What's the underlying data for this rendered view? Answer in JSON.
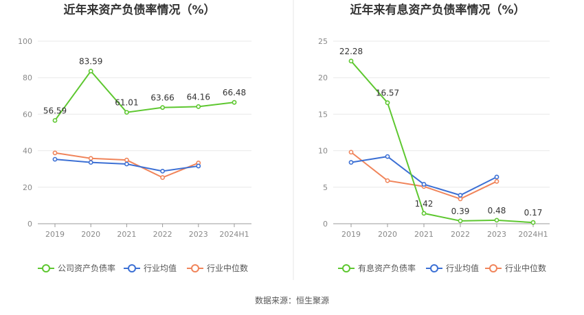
{
  "source_label": "数据来源：恒生聚源",
  "chart_data": [
    {
      "type": "line",
      "title": "近年来资产负债率情况（%）",
      "categories": [
        "2019",
        "2020",
        "2021",
        "2022",
        "2023",
        "2024H1"
      ],
      "ylim": [
        0,
        100
      ],
      "yticks": [
        0,
        20,
        40,
        60,
        80,
        100
      ],
      "grid": true,
      "legend_position": "bottom",
      "series": [
        {
          "name": "公司资产负债率",
          "color": "#5dc72f",
          "values": [
            56.59,
            83.59,
            61.01,
            63.66,
            64.16,
            66.48
          ],
          "labels": [
            "56.59",
            "83.59",
            "61.01",
            "63.66",
            "64.16",
            "66.48"
          ]
        },
        {
          "name": "行业均值",
          "color": "#3b6fd4",
          "values": [
            35.3,
            33.6,
            32.7,
            28.8,
            31.6,
            null
          ],
          "labels": []
        },
        {
          "name": "行业中位数",
          "color": "#f0845a",
          "values": [
            38.8,
            35.8,
            34.9,
            25.3,
            33.3,
            null
          ],
          "labels": []
        }
      ]
    },
    {
      "type": "line",
      "title": "近年来有息资产负债率情况（%）",
      "categories": [
        "2019",
        "2020",
        "2021",
        "2022",
        "2023",
        "2024H1"
      ],
      "ylim": [
        0,
        25
      ],
      "yticks": [
        0,
        5,
        10,
        15,
        20,
        25
      ],
      "grid": true,
      "legend_position": "bottom",
      "series": [
        {
          "name": "有息资产负债率",
          "color": "#5dc72f",
          "values": [
            22.28,
            16.57,
            1.42,
            0.39,
            0.48,
            0.17
          ],
          "labels": [
            "22.28",
            "16.57",
            "1.42",
            "0.39",
            "0.48",
            "0.17"
          ]
        },
        {
          "name": "行业均值",
          "color": "#3b6fd4",
          "values": [
            8.4,
            9.2,
            5.4,
            3.9,
            6.4,
            null
          ],
          "labels": []
        },
        {
          "name": "行业中位数",
          "color": "#f0845a",
          "values": [
            9.8,
            5.9,
            5.1,
            3.4,
            5.8,
            null
          ],
          "labels": []
        }
      ]
    }
  ]
}
